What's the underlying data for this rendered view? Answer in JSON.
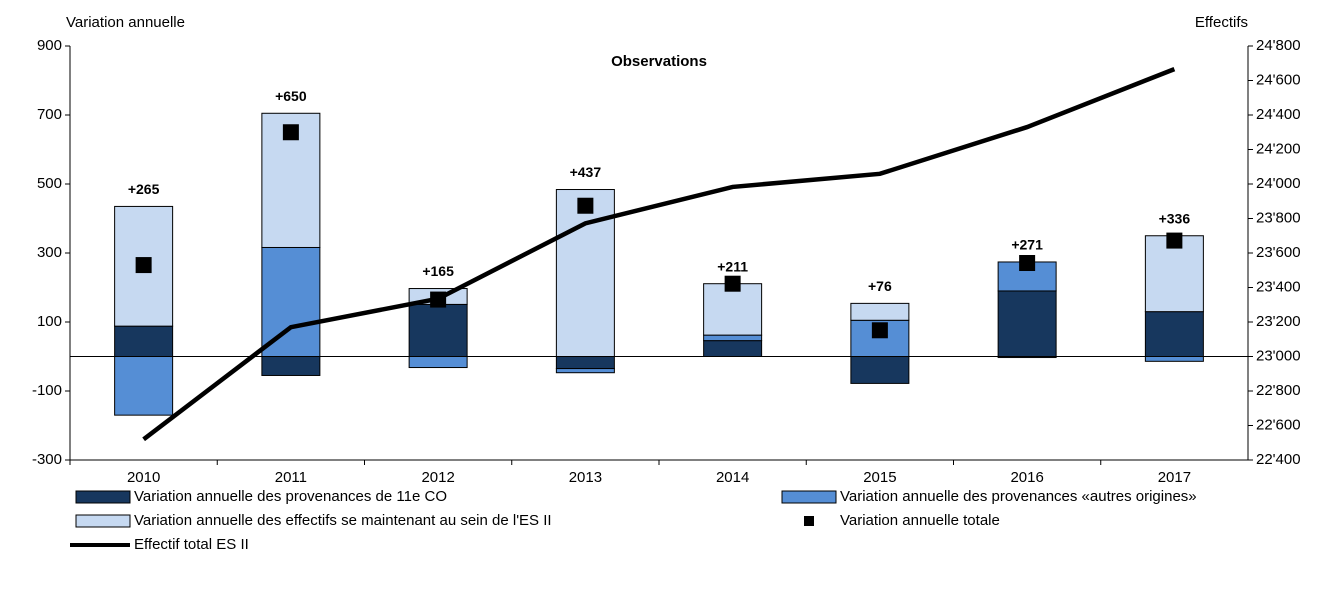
{
  "chart_data": {
    "type": "bar",
    "title": "Observations",
    "y_label": "Variation annuelle",
    "y2_label": "Effectifs",
    "categories": [
      "2010",
      "2011",
      "2012",
      "2013",
      "2014",
      "2015",
      "2016",
      "2017"
    ],
    "series": [
      {
        "name": "Variation annuelle des provenances de 11e CO",
        "kind": "bar",
        "color": "#17375e",
        "values": [
          88,
          -55,
          151,
          -35,
          46,
          -78,
          190,
          130
        ]
      },
      {
        "name": "Variation annuelle des provenances «autres origines»",
        "kind": "bar",
        "color": "#558ed5",
        "values": [
          -170,
          316,
          -32,
          -12,
          16,
          105,
          84,
          -14
        ]
      },
      {
        "name": "Variation annuelle des effectifs se maintenant au sein de l'ES II",
        "kind": "bar",
        "color": "#c6d9f1",
        "values": [
          347,
          389,
          46,
          484,
          149,
          49,
          -3,
          220
        ]
      },
      {
        "name": "Variation annuelle totale",
        "kind": "marker",
        "color": "#000000",
        "values": [
          265,
          650,
          165,
          437,
          211,
          76,
          271,
          336
        ],
        "value_labels": [
          "+265",
          "+650",
          "+165",
          "+437",
          "+211",
          "+76",
          "+271",
          "+336"
        ]
      },
      {
        "name": "Effectif total ES II",
        "kind": "line",
        "axis": "y2",
        "color": "#000000",
        "values": [
          22520,
          23170,
          23335,
          23772,
          23983,
          24059,
          24330,
          24666
        ]
      }
    ],
    "ylim": [
      -300,
      900
    ],
    "yticks": [
      -300,
      -100,
      100,
      300,
      500,
      700,
      900
    ],
    "y2lim": [
      22400,
      24800
    ],
    "y2ticks": [
      {
        "value": 22400,
        "label": "22'400"
      },
      {
        "value": 22600,
        "label": "22'600"
      },
      {
        "value": 22800,
        "label": "22'800"
      },
      {
        "value": 23000,
        "label": "23'000"
      },
      {
        "value": 23200,
        "label": "23'200"
      },
      {
        "value": 23400,
        "label": "23'400"
      },
      {
        "value": 23600,
        "label": "23'600"
      },
      {
        "value": 23800,
        "label": "23'800"
      },
      {
        "value": 24000,
        "label": "24'000"
      },
      {
        "value": 24200,
        "label": "24'200"
      },
      {
        "value": 24400,
        "label": "24'400"
      },
      {
        "value": 24600,
        "label": "24'600"
      },
      {
        "value": 24800,
        "label": "24'800"
      }
    ],
    "grid": false,
    "legend": "bottom"
  }
}
